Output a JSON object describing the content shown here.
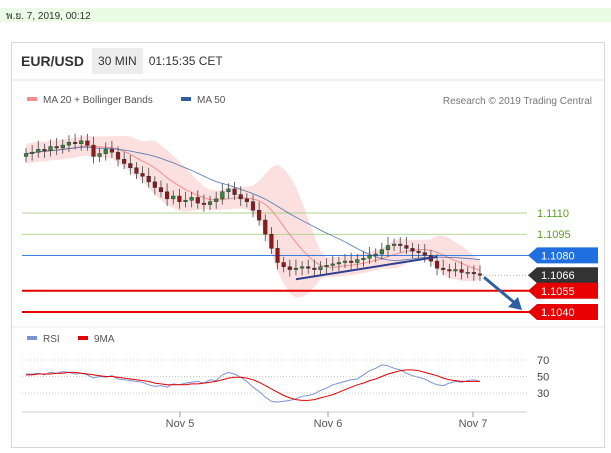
{
  "timestamp": "พ.ย. 7, 2019, 00:12",
  "header": {
    "symbol": "EUR/USD",
    "timeframe": "30 MIN",
    "time": "01:15:35 CET"
  },
  "legend": {
    "items": [
      {
        "label": "MA 20 + Bollinger Bands",
        "color": "#f48f8f"
      },
      {
        "label": "MA 50",
        "color": "#2d5fa5"
      }
    ],
    "credit": "Research © 2019 Trading Central"
  },
  "chart_data": [
    {
      "type": "line",
      "x": [
        "Nov 5",
        "Nov 6",
        "Nov 7"
      ],
      "levels": [
        {
          "label": "1.1110",
          "value": 1.111,
          "color": "#9cc96b",
          "kind": "resistance-green"
        },
        {
          "label": "1.1095",
          "value": 1.1095,
          "color": "#9cc96b",
          "kind": "resistance-green"
        },
        {
          "label": "1.1080",
          "value": 1.108,
          "color": "#1f6fe0",
          "kind": "ma"
        },
        {
          "label": "1.1066",
          "value": 1.1066,
          "color": "#333333",
          "kind": "current"
        },
        {
          "label": "1.1055",
          "value": 1.1055,
          "color": "#e60000",
          "kind": "support"
        },
        {
          "label": "1.1040",
          "value": 1.104,
          "color": "#e60000",
          "kind": "support"
        }
      ],
      "price_close_series": [
        1.1152,
        1.1153,
        1.1155,
        1.1154,
        1.1157,
        1.1156,
        1.1158,
        1.116,
        1.1159,
        1.1161,
        1.1158,
        1.115,
        1.1152,
        1.1155,
        1.1153,
        1.1148,
        1.1145,
        1.1142,
        1.1138,
        1.1136,
        1.1132,
        1.1128,
        1.1125,
        1.112,
        1.1122,
        1.1118,
        1.1119,
        1.1121,
        1.1117,
        1.1116,
        1.1118,
        1.112,
        1.1125,
        1.1127,
        1.1123,
        1.112,
        1.1118,
        1.1112,
        1.1105,
        1.1095,
        1.1085,
        1.1075,
        1.1072,
        1.107,
        1.1071,
        1.1072,
        1.1071,
        1.107,
        1.1072,
        1.1073,
        1.1074,
        1.1075,
        1.1076,
        1.1075,
        1.1077,
        1.1078,
        1.108,
        1.1081,
        1.1084,
        1.1087,
        1.1088,
        1.1087,
        1.1085,
        1.1083,
        1.1082,
        1.108,
        1.1076,
        1.1071,
        1.107,
        1.1069,
        1.107,
        1.1068,
        1.1068,
        1.1067,
        1.1066
      ],
      "trendline": {
        "from": 1.1066,
        "to": 1.1079
      },
      "forecast_arrow": {
        "from": 1.1066,
        "to": 1.104
      }
    },
    {
      "type": "line",
      "legend": [
        {
          "label": "RSI",
          "color": "#7a93d8"
        },
        {
          "label": "9MA",
          "color": "#e60000"
        }
      ],
      "y_ticks": [
        "70",
        "50",
        "30"
      ],
      "ylim": [
        15,
        80
      ],
      "rsi": [
        53,
        53,
        54,
        52,
        55,
        54,
        56,
        55,
        53,
        54,
        52,
        48,
        50,
        49,
        51,
        47,
        46,
        45,
        44,
        43,
        40,
        38,
        39,
        37,
        41,
        40,
        42,
        43,
        44,
        42,
        46,
        45,
        52,
        55,
        53,
        49,
        44,
        37,
        32,
        25,
        20,
        19,
        20,
        21,
        23,
        26,
        27,
        29,
        33,
        36,
        40,
        42,
        44,
        46,
        47,
        52,
        57,
        60,
        64,
        63,
        60,
        58,
        54,
        51,
        49,
        47,
        43,
        40,
        39,
        42,
        44,
        43,
        45,
        46,
        44
      ],
      "ma9": [
        52,
        52,
        53,
        53,
        53,
        54,
        54,
        55,
        55,
        54,
        53,
        52,
        51,
        50,
        50,
        49,
        48,
        47,
        46,
        45,
        44,
        42,
        41,
        40,
        40,
        40,
        40,
        41,
        41,
        42,
        43,
        44,
        46,
        48,
        49,
        49,
        48,
        46,
        43,
        39,
        35,
        31,
        27,
        24,
        22,
        21,
        21,
        22,
        24,
        26,
        28,
        31,
        34,
        37,
        40,
        42,
        45,
        47,
        50,
        53,
        55,
        57,
        58,
        58,
        57,
        55,
        53,
        51,
        48,
        46,
        45,
        44,
        44,
        44,
        44
      ]
    }
  ],
  "arrow_color": "#2d5fa5"
}
